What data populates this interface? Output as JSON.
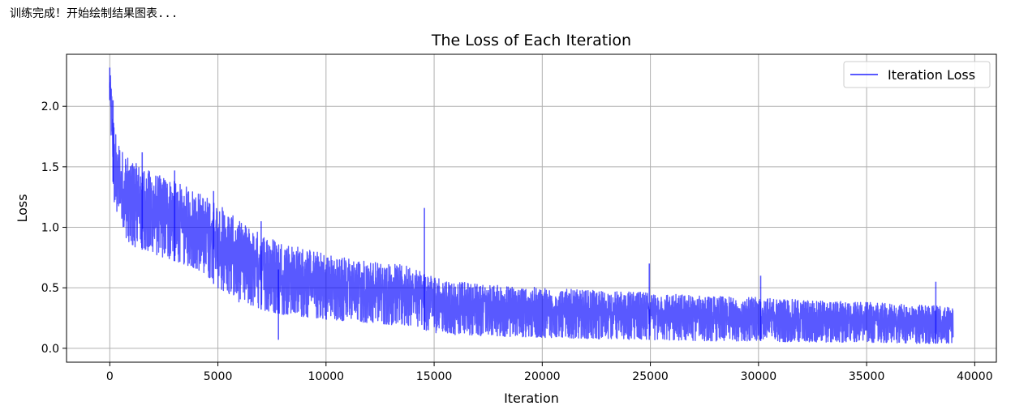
{
  "output": {
    "console_line": "训练完成！开始绘制结果图表..."
  },
  "chart_data": {
    "type": "line",
    "title": "The Loss of Each Iteration",
    "xlabel": "Iteration",
    "ylabel": "Loss",
    "xlim": [
      -2000,
      41000
    ],
    "ylim": [
      -0.115,
      2.43
    ],
    "xticks": [
      0,
      5000,
      10000,
      15000,
      20000,
      25000,
      30000,
      35000,
      40000
    ],
    "yticks": [
      0.0,
      0.5,
      1.0,
      1.5,
      2.0
    ],
    "grid": true,
    "legend_position": "top-right",
    "series": [
      {
        "name": "Iteration Loss",
        "color": "#0000ff",
        "alpha": 0.65,
        "envelope": {
          "note_type": "banded-noisy-line",
          "x": [
            0,
            100,
            200,
            500,
            1000,
            2000,
            3000,
            4000,
            5000,
            6000,
            7000,
            8000,
            10000,
            12000,
            14000,
            15000,
            16000,
            18000,
            20000,
            22000,
            25000,
            28000,
            30000,
            32000,
            35000,
            37000,
            39000
          ],
          "low": [
            2.05,
            1.55,
            1.2,
            0.98,
            0.85,
            0.78,
            0.72,
            0.66,
            0.5,
            0.38,
            0.32,
            0.28,
            0.24,
            0.21,
            0.18,
            0.13,
            0.11,
            0.1,
            0.09,
            0.08,
            0.07,
            0.06,
            0.06,
            0.05,
            0.05,
            0.04,
            0.04
          ],
          "high": [
            2.32,
            2.1,
            1.85,
            1.65,
            1.55,
            1.45,
            1.38,
            1.3,
            1.2,
            1.05,
            0.95,
            0.88,
            0.78,
            0.72,
            0.68,
            0.6,
            0.55,
            0.52,
            0.5,
            0.48,
            0.46,
            0.43,
            0.42,
            0.4,
            0.38,
            0.36,
            0.35
          ]
        },
        "spikes": [
          {
            "x": 0,
            "y": 2.32
          },
          {
            "x": 150,
            "y": 2.05
          },
          {
            "x": 1500,
            "y": 1.62
          },
          {
            "x": 3000,
            "y": 1.47
          },
          {
            "x": 4800,
            "y": 1.3
          },
          {
            "x": 7000,
            "y": 1.05
          },
          {
            "x": 7800,
            "y": 0.07
          },
          {
            "x": 14550,
            "y": 1.16
          },
          {
            "x": 24950,
            "y": 0.7
          },
          {
            "x": 30100,
            "y": 0.6
          },
          {
            "x": 38200,
            "y": 0.55
          }
        ]
      }
    ]
  }
}
